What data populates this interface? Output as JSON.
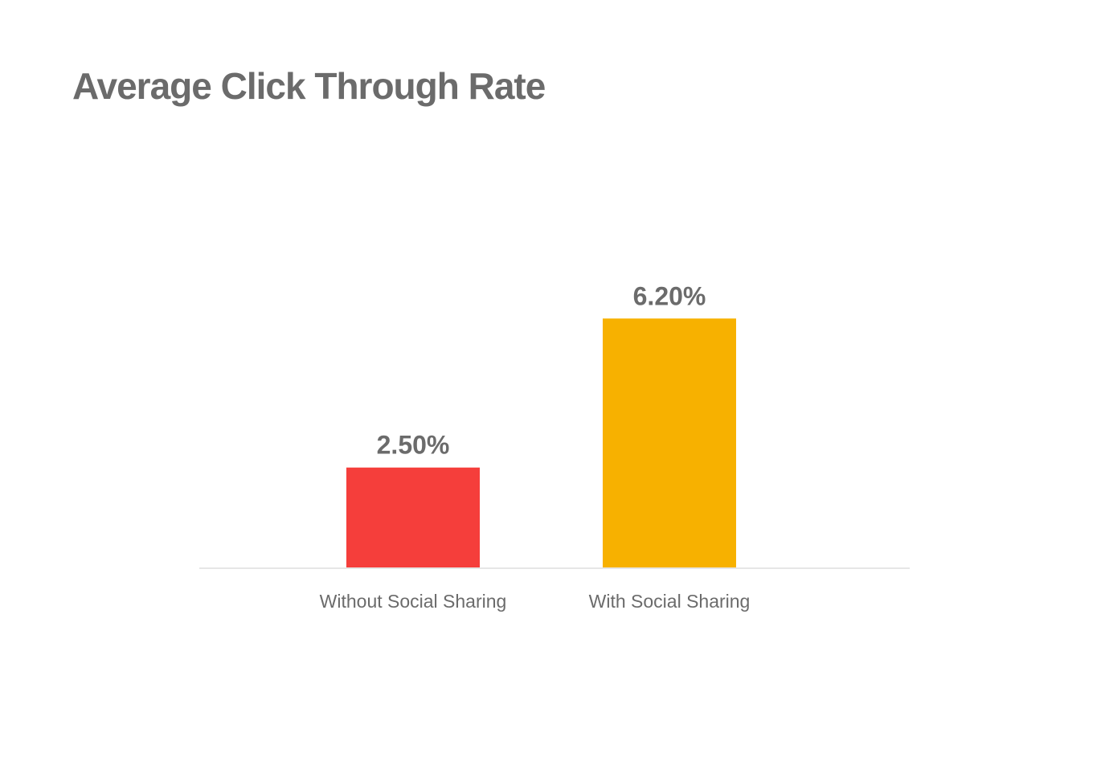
{
  "chart_data": {
    "type": "bar",
    "title": "Average Click Through Rate",
    "xlabel": "",
    "ylabel": "",
    "categories": [
      "Without Social Sharing",
      "With Social Sharing"
    ],
    "values": [
      2.5,
      6.2
    ],
    "value_labels": [
      "2.50%",
      "6.20%"
    ],
    "colors": [
      "#f53e3b",
      "#f7b100"
    ],
    "ylim": [
      0,
      7
    ],
    "grid": false,
    "legend": "none"
  }
}
